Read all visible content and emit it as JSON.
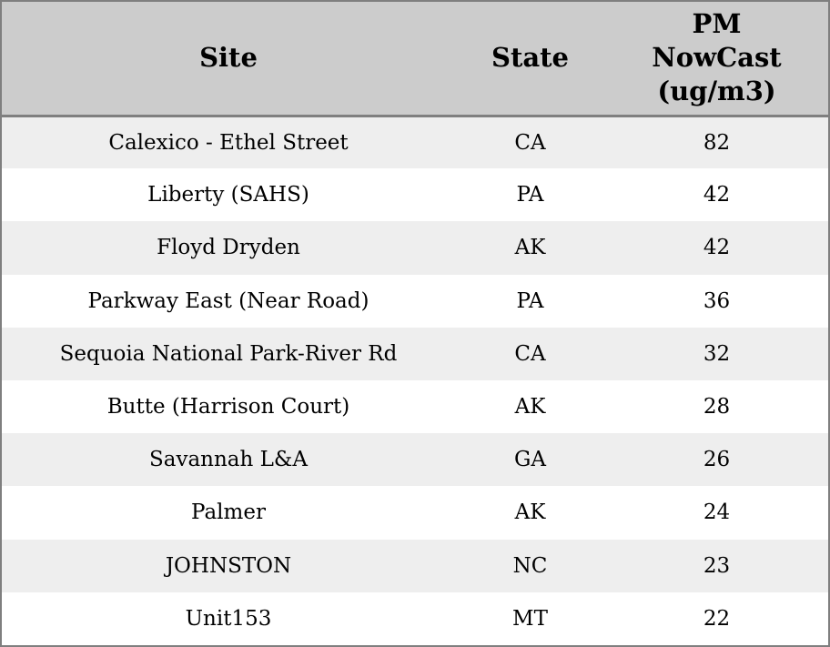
{
  "colors": {
    "header_bg": "#cccccc",
    "stripe_row_bg": "#eeeeee",
    "plain_row_bg": "#ffffff",
    "border": "#7f7f7f",
    "text": "#000000"
  },
  "table": {
    "columns": [
      {
        "id": "site",
        "label": "Site"
      },
      {
        "id": "state",
        "label": "State"
      },
      {
        "id": "pm_nowcast",
        "label": "PM NowCast (ug/m3)",
        "label_lines": [
          "PM",
          "NowCast",
          "(ug/m3)"
        ]
      }
    ],
    "rows": [
      {
        "site": "Calexico - Ethel Street",
        "state": "CA",
        "pm_nowcast": "82"
      },
      {
        "site": "Liberty (SAHS)",
        "state": "PA",
        "pm_nowcast": "42"
      },
      {
        "site": "Floyd Dryden",
        "state": "AK",
        "pm_nowcast": "42"
      },
      {
        "site": "Parkway East (Near Road)",
        "state": "PA",
        "pm_nowcast": "36"
      },
      {
        "site": "Sequoia National Park-River Rd",
        "state": "CA",
        "pm_nowcast": "32"
      },
      {
        "site": "Butte (Harrison Court)",
        "state": "AK",
        "pm_nowcast": "28"
      },
      {
        "site": "Savannah L&A",
        "state": "GA",
        "pm_nowcast": "26"
      },
      {
        "site": "Palmer",
        "state": "AK",
        "pm_nowcast": "24"
      },
      {
        "site": "JOHNSTON",
        "state": "NC",
        "pm_nowcast": "23"
      },
      {
        "site": "Unit153",
        "state": "MT",
        "pm_nowcast": "22"
      }
    ]
  },
  "chart_data": {
    "type": "table",
    "title": "",
    "columns": [
      "Site",
      "State",
      "PM NowCast (ug/m3)"
    ],
    "rows": [
      [
        "Calexico - Ethel Street",
        "CA",
        82
      ],
      [
        "Liberty (SAHS)",
        "PA",
        42
      ],
      [
        "Floyd Dryden",
        "AK",
        42
      ],
      [
        "Parkway East (Near Road)",
        "PA",
        36
      ],
      [
        "Sequoia National Park-River Rd",
        "CA",
        32
      ],
      [
        "Butte (Harrison Court)",
        "AK",
        28
      ],
      [
        "Savannah L&A",
        "GA",
        26
      ],
      [
        "Palmer",
        "AK",
        24
      ],
      [
        "JOHNSTON",
        "NC",
        23
      ],
      [
        "Unit153",
        "MT",
        22
      ]
    ],
    "layout": {
      "header_band": true,
      "zebra_stripes": true,
      "alignment": "center"
    }
  }
}
